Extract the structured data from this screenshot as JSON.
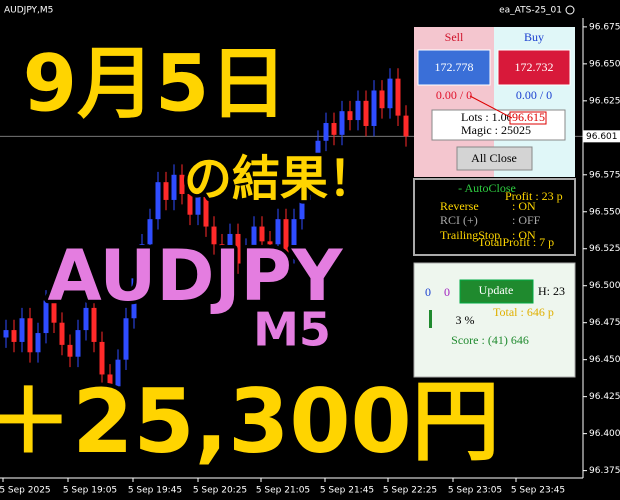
{
  "window": {
    "title": "AUDJPY,M5",
    "ea_name": "ea_ATS-25_01"
  },
  "chart_data": {
    "type": "candlestick",
    "open": [
      96.465,
      96.47,
      96.462,
      96.478,
      96.455,
      96.468,
      96.49,
      96.475,
      96.46,
      96.452,
      96.47,
      96.485,
      96.462,
      96.44,
      96.432,
      96.45,
      96.478,
      96.505,
      96.528,
      96.545,
      96.57,
      96.558,
      96.575,
      96.562,
      96.548,
      96.56,
      96.54,
      96.528,
      96.52,
      96.535,
      96.515,
      96.525,
      96.54,
      96.53,
      96.528,
      96.545,
      96.522,
      96.545,
      96.565,
      96.58,
      96.598,
      96.61,
      96.602,
      96.618,
      96.612,
      96.625,
      96.608,
      96.632,
      96.62,
      96.64,
      96.615
    ],
    "high": [
      96.477,
      96.477,
      96.485,
      96.485,
      96.475,
      96.497,
      96.497,
      96.482,
      96.467,
      96.477,
      96.492,
      96.492,
      96.469,
      96.447,
      96.457,
      96.485,
      96.512,
      96.535,
      96.552,
      96.577,
      96.577,
      96.582,
      96.582,
      96.569,
      96.567,
      96.567,
      96.547,
      96.535,
      96.542,
      96.542,
      96.532,
      96.547,
      96.547,
      96.537,
      96.552,
      96.552,
      96.552,
      96.572,
      96.587,
      96.605,
      96.617,
      96.617,
      96.625,
      96.625,
      96.632,
      96.632,
      96.639,
      96.639,
      96.647,
      96.647,
      96.622
    ],
    "low": [
      96.458,
      96.455,
      96.455,
      96.448,
      96.448,
      96.461,
      96.468,
      96.453,
      96.445,
      96.445,
      96.463,
      96.455,
      96.433,
      96.425,
      96.425,
      96.443,
      96.471,
      96.498,
      96.521,
      96.538,
      96.551,
      96.551,
      96.555,
      96.541,
      96.541,
      96.533,
      96.521,
      96.513,
      96.513,
      96.508,
      96.508,
      96.518,
      96.523,
      96.521,
      96.521,
      96.515,
      96.515,
      96.538,
      96.558,
      96.573,
      96.591,
      96.595,
      96.595,
      96.605,
      96.605,
      96.601,
      96.601,
      96.613,
      96.613,
      96.608,
      96.594
    ],
    "close": [
      96.47,
      96.462,
      96.478,
      96.455,
      96.468,
      96.49,
      96.475,
      96.46,
      96.452,
      96.47,
      96.485,
      96.462,
      96.44,
      96.432,
      96.45,
      96.478,
      96.505,
      96.528,
      96.545,
      96.57,
      96.558,
      96.575,
      96.562,
      96.548,
      96.56,
      96.54,
      96.528,
      96.52,
      96.535,
      96.515,
      96.525,
      96.54,
      96.53,
      96.528,
      96.545,
      96.522,
      96.545,
      96.565,
      96.58,
      96.598,
      96.61,
      96.602,
      96.618,
      96.612,
      96.625,
      96.608,
      96.632,
      96.62,
      96.64,
      96.615,
      96.601
    ],
    "up_color": "#2f4dff",
    "down_color": "#ff2a2a",
    "ylim": [
      96.37,
      96.681
    ],
    "yticks": [
      {
        "value": 96.675,
        "label": "96.675"
      },
      {
        "value": 96.65,
        "label": "96.650"
      },
      {
        "value": 96.625,
        "label": "96.625"
      },
      {
        "value": 96.575,
        "label": "96.575"
      },
      {
        "value": 96.55,
        "label": "96.550"
      },
      {
        "value": 96.525,
        "label": "96.525"
      },
      {
        "value": 96.5,
        "label": "96.500"
      },
      {
        "value": 96.475,
        "label": "96.475"
      },
      {
        "value": 96.45,
        "label": "96.450"
      },
      {
        "value": 96.425,
        "label": "96.425"
      },
      {
        "value": 96.4,
        "label": "96.400"
      },
      {
        "value": 96.375,
        "label": "96.375"
      }
    ],
    "current_price": 96.601,
    "x_labels": [
      "5 Sep 2025",
      "5 Sep 19:05",
      "5 Sep 19:45",
      "5 Sep 20:25",
      "5 Sep 21:05",
      "5 Sep 21:45",
      "5 Sep 22:25",
      "5 Sep 23:05",
      "5 Sep 23:45"
    ]
  },
  "overlay": {
    "date": "9月5日",
    "result": "の結果！",
    "pair": "AUDJPY",
    "timeframe": "M5",
    "profit": "＋25,300円"
  },
  "trade_panel": {
    "sell": "Sell",
    "buy": "Buy",
    "sell_price": "172.778",
    "buy_price": "172.732",
    "sell_position": "0.00 / 0",
    "buy_position": "0.00 / 0",
    "lots": "Lots : 1.00",
    "price_box": "96.615",
    "magic": "Magic : 25025",
    "close_button": "All Close"
  },
  "status_panel": {
    "auto_close": "- AutoClose",
    "profit": "Profit : 23 p",
    "reverse": "Reverse",
    "reverse_value": ": ON",
    "rci": "RCI (+)",
    "rci_value": ": OFF",
    "trailing": "TrailingStop",
    "trailing_value": ": ON",
    "total_profit": "TotalProfit : 7 p"
  },
  "score_panel": {
    "count_a": "0",
    "count_b": "0",
    "update_button": "Update",
    "hours": "H: 23",
    "total": "Total : 646 p",
    "percent": "3 %",
    "score": "Score : (41) 646"
  }
}
